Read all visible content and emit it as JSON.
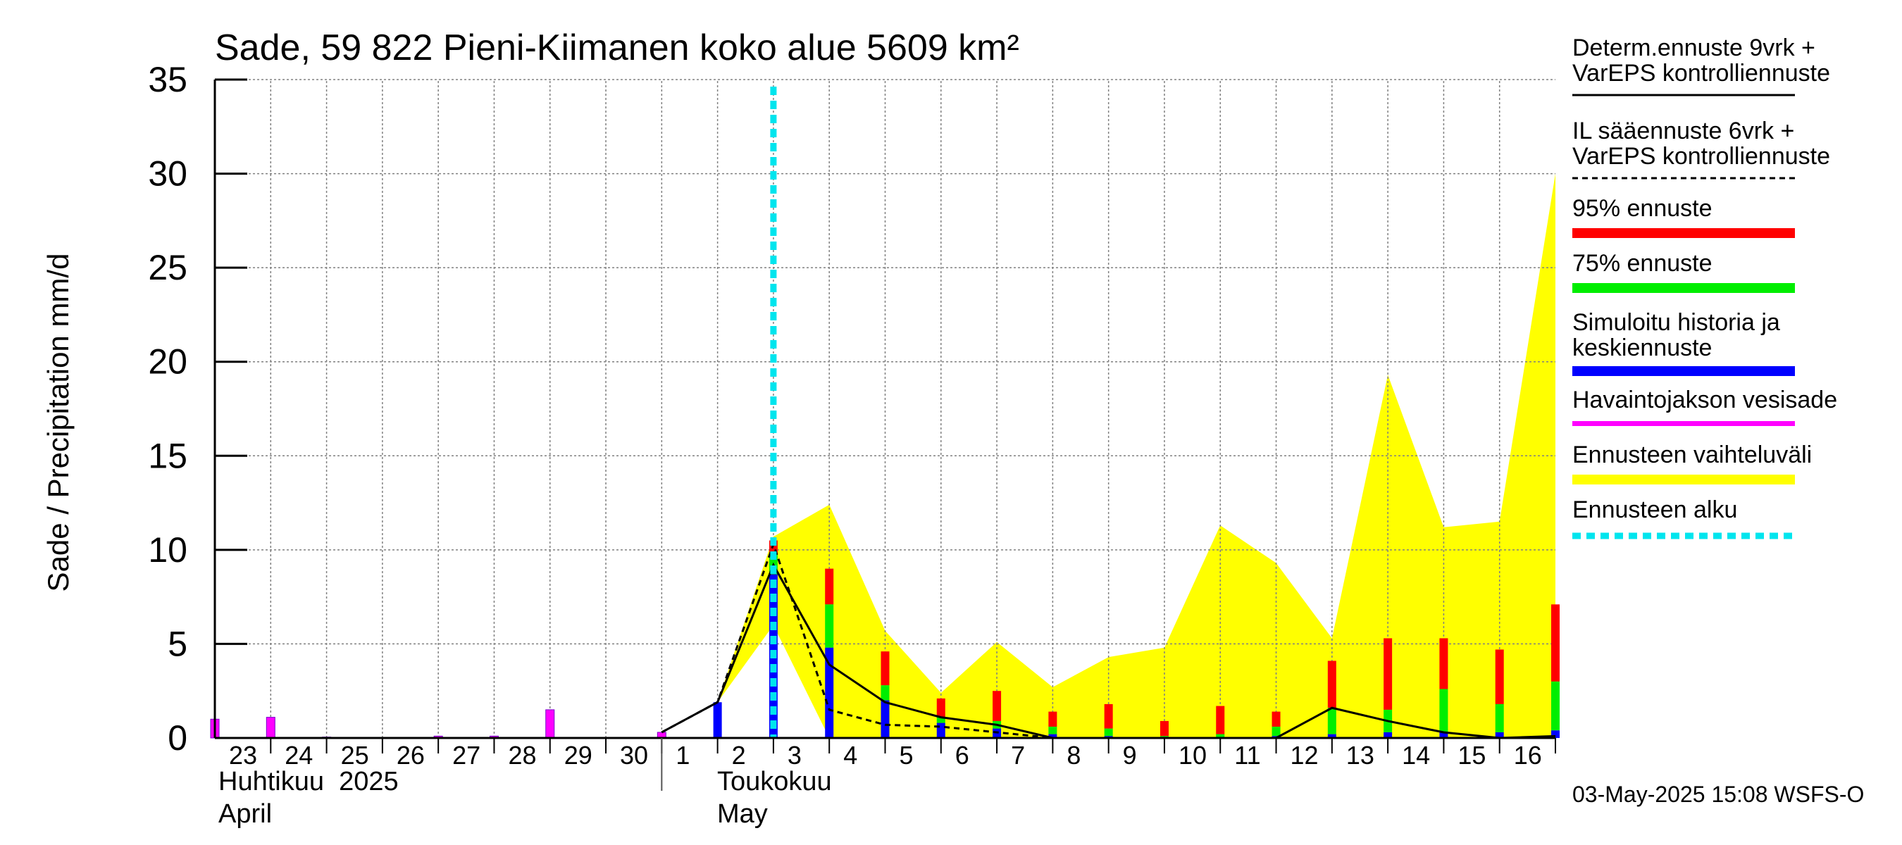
{
  "chart_data": {
    "type": "bar",
    "title": "Sade, 59 822 Pieni-Kiimanen koko alue 5609 km²",
    "ylabel": "Sade / Precipitation   mm/d",
    "ylim": [
      0,
      35
    ],
    "yticks": [
      0,
      5,
      10,
      15,
      20,
      25,
      30,
      35
    ],
    "grid": true,
    "legend_position": "right",
    "x_ticks": [
      "23",
      "24",
      "25",
      "26",
      "27",
      "28",
      "29",
      "30",
      "1",
      "2",
      "3",
      "4",
      "5",
      "6",
      "7",
      "8",
      "9",
      "10",
      "11",
      "12",
      "13",
      "14",
      "15",
      "16"
    ],
    "month_labels": [
      {
        "fi": "Huhtikuu  2025",
        "en": "April"
      },
      {
        "fi": "Toukokuu",
        "en": "May"
      }
    ],
    "forecast_start_day": 10,
    "observed_precip": {
      "name": "Havaintojakson vesisade",
      "values": [
        1.0,
        1.1,
        0.05,
        0.0,
        0.1,
        0.1,
        1.5,
        0.0,
        0.3
      ]
    },
    "simulated_history_mean": {
      "name": "Simuloitu historia ja keskiennuste",
      "days": [
        9,
        10,
        11,
        12,
        13,
        14,
        15,
        16,
        17,
        18,
        19,
        20,
        21,
        22,
        23,
        24
      ],
      "values": [
        1.9,
        8.7,
        4.8,
        2.0,
        0.8,
        0.5,
        0.2,
        0.1,
        0.0,
        0.05,
        0.1,
        0.2,
        0.3,
        0.3,
        0.3,
        0.4
      ]
    },
    "p75": {
      "name": "75% ennuste",
      "days": [
        10,
        11,
        12,
        13,
        14,
        15,
        16,
        17,
        18,
        19,
        20,
        21,
        22,
        23,
        24
      ],
      "values": [
        9.8,
        7.1,
        2.8,
        1.1,
        0.9,
        0.6,
        0.5,
        0.1,
        0.2,
        0.6,
        1.6,
        1.5,
        2.6,
        1.8,
        3.0
      ]
    },
    "p95": {
      "name": "95% ennuste",
      "days": [
        10,
        11,
        12,
        13,
        14,
        15,
        16,
        17,
        18,
        19,
        20,
        21,
        22,
        23,
        24
      ],
      "values": [
        10.5,
        9.0,
        4.6,
        2.1,
        2.5,
        1.4,
        1.8,
        0.9,
        1.7,
        1.4,
        4.1,
        5.3,
        5.3,
        4.7,
        7.1
      ]
    },
    "range_band": {
      "name": "Ennusteen vaihteluväli",
      "days": [
        9,
        10,
        11,
        12,
        13,
        14,
        15,
        16,
        17,
        18,
        19,
        20,
        21,
        22,
        23,
        24
      ],
      "upper": [
        1.9,
        10.7,
        12.4,
        5.7,
        2.4,
        5.1,
        2.7,
        4.3,
        4.8,
        11.3,
        9.3,
        5.3,
        19.3,
        11.2,
        11.5,
        30.0
      ],
      "lower": [
        1.9,
        6.0,
        0.0,
        0.0,
        0.0,
        0.0,
        0.0,
        0.0,
        0.0,
        0.0,
        0.0,
        0.0,
        0.0,
        0.0,
        0.0,
        0.0
      ]
    },
    "determ_line": {
      "name": "Determ.ennuste 9vrk + VarEPS kontrolliennuste",
      "days": [
        8,
        9,
        10,
        11,
        12,
        13,
        14,
        15,
        16,
        17,
        18,
        19,
        20,
        21,
        22,
        23,
        24
      ],
      "values": [
        0.3,
        1.9,
        9.2,
        3.9,
        1.9,
        1.1,
        0.7,
        0.0,
        0.0,
        0.0,
        0.0,
        0.0,
        1.6,
        0.9,
        0.3,
        0.0,
        0.1
      ]
    },
    "il_line": {
      "name": "IL sääennuste 6vrk + VarEPS kontrolliennuste",
      "days": [
        8,
        9,
        10,
        11,
        12,
        13,
        14,
        15,
        16
      ],
      "values": [
        0.3,
        1.9,
        10.3,
        1.5,
        0.7,
        0.6,
        0.3,
        0.0,
        0.0
      ]
    },
    "colors": {
      "observed": "#ff00ff",
      "mean": "#0000ff",
      "p75": "#00ee00",
      "p95": "#ff0000",
      "band": "#ffff00",
      "forecast_start": "#00e5ee",
      "grid": "#808080"
    }
  },
  "legend": {
    "determ": "Determ.ennuste 9vrk +\nVarEPS kontrolliennuste",
    "il": "IL sääennuste 6vrk  +\n  VarEPS kontrolliennuste",
    "p95": "95% ennuste",
    "p75": "75% ennuste",
    "mean": "Simuloitu historia ja\nkeskiennuste",
    "observed": "Havaintojakson vesisade",
    "band": "Ennusteen vaihteluväli",
    "start": "Ennusteen alku"
  },
  "footer": "03-May-2025 15:08 WSFS-O"
}
